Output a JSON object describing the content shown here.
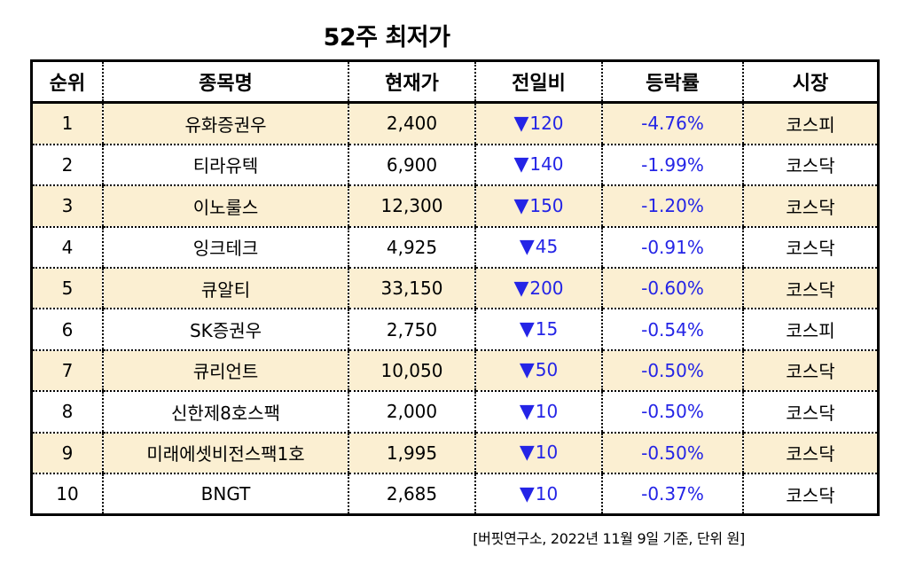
{
  "title": "52주 최저가",
  "headers": {
    "rank": "순위",
    "name": "종목명",
    "price": "현재가",
    "change": "전일비",
    "rate": "등락률",
    "market": "시장"
  },
  "down_icon": "down-triangle",
  "colors": {
    "odd_row_bg": "#fbefd2",
    "down_color": "#2424e6"
  },
  "rows": [
    {
      "rank": "1",
      "name": "유화증권우",
      "price": "2,400",
      "change": "120",
      "rate": "-4.76%",
      "market": "코스피"
    },
    {
      "rank": "2",
      "name": "티라유텍",
      "price": "6,900",
      "change": "140",
      "rate": "-1.99%",
      "market": "코스닥"
    },
    {
      "rank": "3",
      "name": "이노룰스",
      "price": "12,300",
      "change": "150",
      "rate": "-1.20%",
      "market": "코스닥"
    },
    {
      "rank": "4",
      "name": "잉크테크",
      "price": "4,925",
      "change": "45",
      "rate": "-0.91%",
      "market": "코스닥"
    },
    {
      "rank": "5",
      "name": "큐알티",
      "price": "33,150",
      "change": "200",
      "rate": "-0.60%",
      "market": "코스닥"
    },
    {
      "rank": "6",
      "name": "SK증권우",
      "price": "2,750",
      "change": "15",
      "rate": "-0.54%",
      "market": "코스피"
    },
    {
      "rank": "7",
      "name": "큐리언트",
      "price": "10,050",
      "change": "50",
      "rate": "-0.50%",
      "market": "코스닥"
    },
    {
      "rank": "8",
      "name": "신한제8호스팩",
      "price": "2,000",
      "change": "10",
      "rate": "-0.50%",
      "market": "코스닥"
    },
    {
      "rank": "9",
      "name": "미래에셋비전스팩1호",
      "price": "1,995",
      "change": "10",
      "rate": "-0.50%",
      "market": "코스닥"
    },
    {
      "rank": "10",
      "name": "BNGT",
      "price": "2,685",
      "change": "10",
      "rate": "-0.37%",
      "market": "코스닥"
    }
  ],
  "source": "[버핏연구소, 2022년 11월 9일 기준, 단위 원]"
}
